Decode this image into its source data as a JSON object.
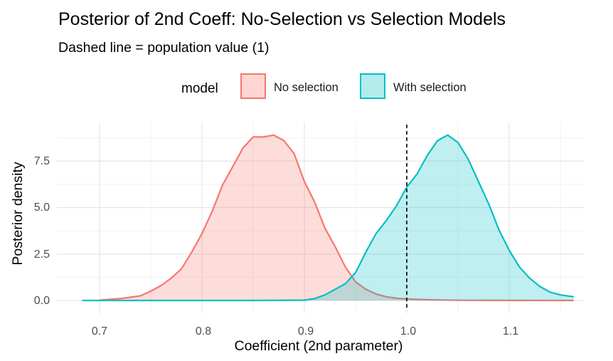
{
  "chart_data": {
    "type": "area",
    "title": "Posterior of 2nd Coeff: No-Selection vs Selection Models",
    "subtitle": "Dashed line = population value (1)",
    "xlabel": "Coefficient (2nd parameter)",
    "ylabel": "Posterior density",
    "xlim": [
      0.683,
      1.165
    ],
    "ylim": [
      0,
      9.0
    ],
    "x_ticks": [
      "0.7",
      "0.8",
      "0.9",
      "1.0",
      "1.1"
    ],
    "y_ticks": [
      "0.0",
      "2.5",
      "5.0",
      "7.5"
    ],
    "legend": {
      "title": "model",
      "position": "top"
    },
    "reference_line": {
      "x": 1.0,
      "style": "dashed"
    },
    "grid": true,
    "series": [
      {
        "name": "No selection",
        "color": "#F8766D",
        "x": [
          0.7,
          0.72,
          0.74,
          0.75,
          0.76,
          0.77,
          0.78,
          0.79,
          0.8,
          0.81,
          0.82,
          0.83,
          0.84,
          0.85,
          0.86,
          0.87,
          0.88,
          0.89,
          0.9,
          0.91,
          0.92,
          0.93,
          0.94,
          0.95,
          0.96,
          0.97,
          0.98,
          0.99,
          1.0,
          1.02,
          1.05,
          1.1,
          1.163
        ],
        "y": [
          0.02,
          0.1,
          0.25,
          0.5,
          0.8,
          1.2,
          1.7,
          2.6,
          3.6,
          4.8,
          6.2,
          7.2,
          8.2,
          8.8,
          8.8,
          8.9,
          8.6,
          7.9,
          6.4,
          5.3,
          3.9,
          2.9,
          1.8,
          1.0,
          0.6,
          0.35,
          0.2,
          0.12,
          0.08,
          0.04,
          0.01,
          0.005,
          0.0
        ]
      },
      {
        "name": "With selection",
        "color": "#00BFC4",
        "x": [
          0.683,
          0.75,
          0.85,
          0.9,
          0.91,
          0.92,
          0.93,
          0.94,
          0.95,
          0.96,
          0.97,
          0.98,
          0.99,
          1.0,
          1.01,
          1.02,
          1.03,
          1.04,
          1.05,
          1.06,
          1.07,
          1.08,
          1.09,
          1.1,
          1.11,
          1.12,
          1.13,
          1.14,
          1.15,
          1.163
        ],
        "y": [
          0.0,
          0.0,
          0.0,
          0.02,
          0.1,
          0.3,
          0.6,
          0.9,
          1.5,
          2.6,
          3.6,
          4.3,
          5.1,
          6.1,
          6.8,
          7.8,
          8.6,
          8.9,
          8.5,
          7.6,
          6.4,
          5.2,
          3.8,
          2.7,
          1.8,
          1.2,
          0.75,
          0.45,
          0.3,
          0.2
        ]
      }
    ]
  }
}
